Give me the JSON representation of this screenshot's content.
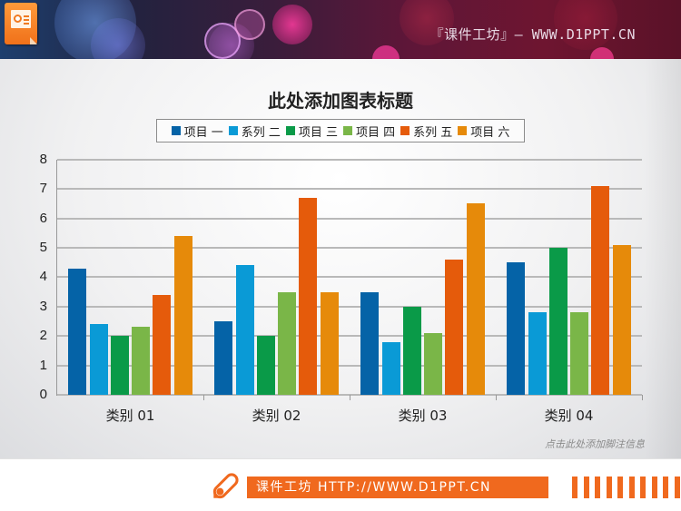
{
  "header": {
    "banner_text": "『课件工坊』— WWW.D1PPT.CN",
    "app_icon": "presentation-file-icon"
  },
  "chart_data": {
    "type": "bar",
    "title": "此处添加图表标题",
    "xlabel": "",
    "ylabel": "",
    "ylim": [
      0,
      8
    ],
    "yticks": [
      0,
      1,
      2,
      3,
      4,
      5,
      6,
      7,
      8
    ],
    "grid": true,
    "legend_position": "top",
    "categories": [
      "类别 01",
      "类别 02",
      "类别 03",
      "类别 04"
    ],
    "series": [
      {
        "name": "项目 一",
        "color": "#0563a7",
        "values": [
          4.3,
          2.5,
          3.5,
          4.5
        ]
      },
      {
        "name": "系列 二",
        "color": "#0a9ad6",
        "values": [
          2.4,
          4.4,
          1.8,
          2.8
        ]
      },
      {
        "name": "项目 三",
        "color": "#0a9a48",
        "values": [
          2.0,
          2.0,
          3.0,
          5.0
        ]
      },
      {
        "name": "项目 四",
        "color": "#7ab648",
        "values": [
          2.3,
          3.5,
          2.1,
          2.8
        ]
      },
      {
        "name": "系列 五",
        "color": "#e55b0b",
        "values": [
          3.4,
          6.7,
          4.6,
          7.1
        ]
      },
      {
        "name": "项目 六",
        "color": "#e68a0a",
        "values": [
          5.4,
          3.5,
          6.5,
          5.1
        ]
      }
    ]
  },
  "footnote": "点击此处添加脚注信息",
  "footer": {
    "text": "课件工坊 HTTP://WWW.D1PPT.CN",
    "accent_color": "#f0691e",
    "icon": "pen-icon"
  }
}
